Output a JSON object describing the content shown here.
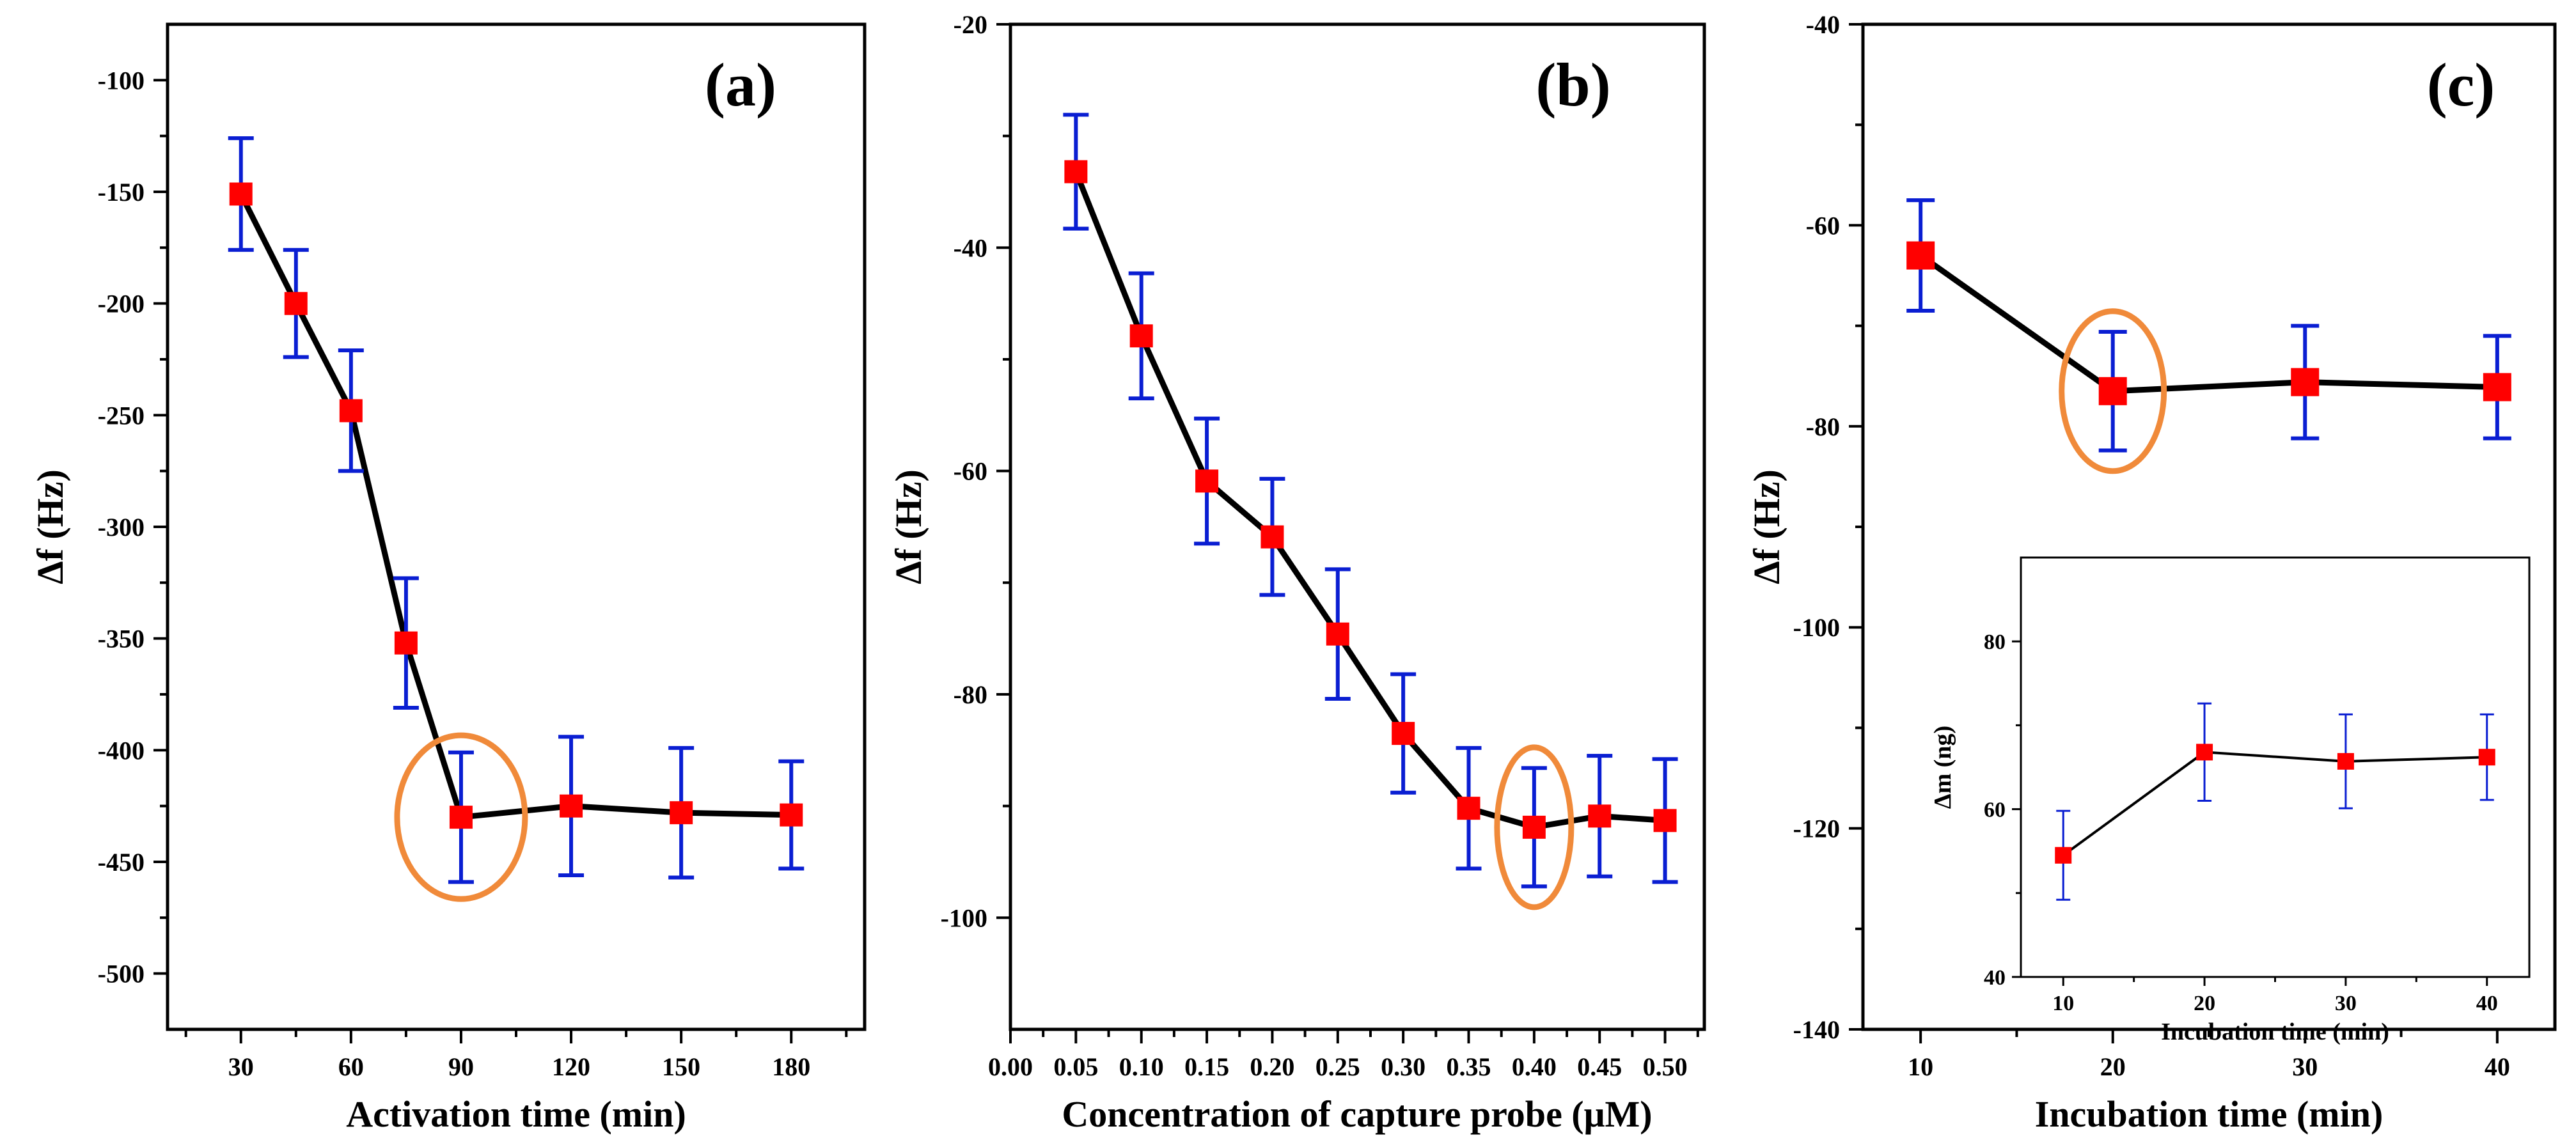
{
  "colors": {
    "marker": "#ff0000",
    "error_bar": "#0a1ed2",
    "line": "#000000",
    "highlight_ring": "#f08a3a",
    "axes": "#000000"
  },
  "chart_data": [
    {
      "type": "scatter",
      "panel_label": "(a)",
      "xlabel": "Activation time (min)",
      "ylabel": "Δf (Hz)",
      "xlim": [
        10,
        200
      ],
      "ylim": [
        -525,
        -75
      ],
      "x_ticks": [
        "30",
        "60",
        "90",
        "120",
        "150",
        "180"
      ],
      "y_ticks": [
        "-100",
        "-150",
        "-200",
        "-250",
        "-300",
        "-350",
        "-400",
        "-450",
        "-500"
      ],
      "series": [
        {
          "x": [
            30,
            45,
            60,
            75,
            90,
            120,
            150,
            180
          ],
          "y": [
            -151,
            -200,
            -248,
            -352,
            -430,
            -425,
            -428,
            -429
          ],
          "error": [
            25,
            24,
            27,
            29,
            29,
            31,
            29,
            24
          ]
        }
      ],
      "highlight_x": 90,
      "grid": false
    },
    {
      "type": "scatter",
      "panel_label": "(b)",
      "xlabel": "Concentration of capture probe (μM)",
      "ylabel": "Δf (Hz)",
      "xlim": [
        0,
        0.53
      ],
      "ylim": [
        -110,
        -20
      ],
      "x_ticks": [
        "0.00",
        "0.05",
        "0.10",
        "0.15",
        "0.20",
        "0.25",
        "0.30",
        "0.35",
        "0.40",
        "0.45",
        "0.50"
      ],
      "y_ticks": [
        "-20",
        "-40",
        "-60",
        "-80",
        "-100"
      ],
      "series": [
        {
          "x": [
            0.05,
            0.1,
            0.15,
            0.2,
            0.25,
            0.3,
            0.35,
            0.4,
            0.45,
            0.5
          ],
          "y": [
            -33.2,
            -47.9,
            -60.9,
            -65.9,
            -74.6,
            -83.5,
            -90.2,
            -91.9,
            -90.9,
            -91.3
          ],
          "error": [
            5.1,
            5.6,
            5.6,
            5.2,
            5.8,
            5.3,
            5.4,
            5.3,
            5.4,
            5.5
          ]
        }
      ],
      "highlight_x": 0.4,
      "grid": false
    },
    {
      "type": "scatter",
      "panel_label": "(c)",
      "xlabel": "Incubation time (min)",
      "ylabel": "Δf (Hz)",
      "xlim": [
        7,
        43
      ],
      "ylim": [
        -140,
        -40
      ],
      "x_ticks": [
        "10",
        "20",
        "30",
        "40"
      ],
      "y_ticks": [
        "-40",
        "-60",
        "-80",
        "-100",
        "-120",
        "-140"
      ],
      "series": [
        {
          "x": [
            10,
            20,
            30,
            40
          ],
          "y": [
            -63,
            -76.5,
            -75.6,
            -76.1
          ],
          "error": [
            5.5,
            5.9,
            5.6,
            5.1
          ]
        }
      ],
      "highlight_x": 20,
      "grid": false,
      "inset": {
        "xlabel": "Incubation time (min)",
        "ylabel": "Δm (ng)",
        "xlim": [
          7,
          43
        ],
        "ylim": [
          40,
          90
        ],
        "x_ticks": [
          "10",
          "20",
          "30",
          "40"
        ],
        "y_ticks": [
          "40",
          "60",
          "80"
        ],
        "x": [
          10,
          20,
          30,
          40
        ],
        "y": [
          54.5,
          66.8,
          65.7,
          66.2
        ],
        "error": [
          5.3,
          5.8,
          5.6,
          5.1
        ]
      }
    }
  ]
}
